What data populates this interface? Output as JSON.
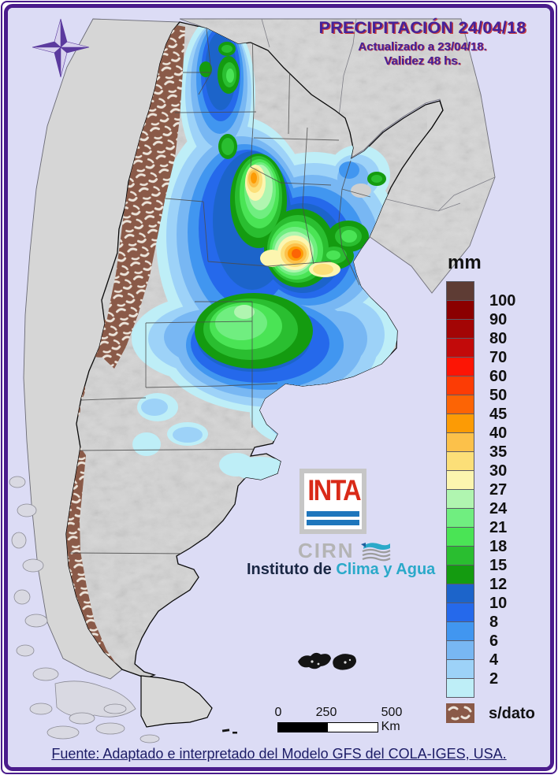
{
  "header": {
    "title": "PRECIPITACIÓN 24/04/18",
    "updated": "Actualizado a 23/04/18.",
    "validity": "Validez 48 hs."
  },
  "legend": {
    "unit": "mm",
    "swatches": [
      {
        "color": "#5e3c34",
        "label": "100"
      },
      {
        "color": "#8b0000",
        "label": "90"
      },
      {
        "color": "#a30505",
        "label": "80"
      },
      {
        "color": "#c20a0a",
        "label": "70"
      },
      {
        "color": "#fc1505",
        "label": "60"
      },
      {
        "color": "#fc3c05",
        "label": "50"
      },
      {
        "color": "#fc6405",
        "label": "45"
      },
      {
        "color": "#fc9b05",
        "label": "40"
      },
      {
        "color": "#fcc14a",
        "label": "35"
      },
      {
        "color": "#fcdf78",
        "label": "30"
      },
      {
        "color": "#fcf5af",
        "label": "27"
      },
      {
        "color": "#b0f5b0",
        "label": "24"
      },
      {
        "color": "#70ee80",
        "label": "21"
      },
      {
        "color": "#4ae455",
        "label": "18"
      },
      {
        "color": "#2abe30",
        "label": "15"
      },
      {
        "color": "#149b10",
        "label": "12"
      },
      {
        "color": "#1c64ca",
        "label": "10"
      },
      {
        "color": "#2569eb",
        "label": "8"
      },
      {
        "color": "#4196f0",
        "label": "6"
      },
      {
        "color": "#78b7f3",
        "label": "4"
      },
      {
        "color": "#9dd2f8",
        "label": "2"
      },
      {
        "color": "#beeef7",
        "label": ""
      }
    ],
    "no_data": {
      "label": "s/dato",
      "color": "#8a5a48"
    }
  },
  "branding": {
    "inta": "INTA",
    "cirn": "CIRN",
    "institute_prefix": "Instituto de ",
    "institute_name": "Clima y Agua"
  },
  "scalebar": {
    "tick0": "0",
    "tick250": "250",
    "tick500": "500 Km"
  },
  "footer": {
    "source": "Fuente: Adaptado e interpretado del Modelo GFS del COLA-IGES, USA."
  },
  "colors": {
    "frame": "#4a1c8c",
    "background": "#dcdcf5",
    "title_text": "#452299",
    "land_foreign": "#d6d6d6",
    "land_argentina": "#d4d4d4",
    "no_data_hatch": "#8a5a48",
    "inta_red": "#d92a18",
    "inta_blue": "#1e76bc",
    "institute_cyan": "#2aa9c9",
    "source_text": "#1c1c66"
  }
}
